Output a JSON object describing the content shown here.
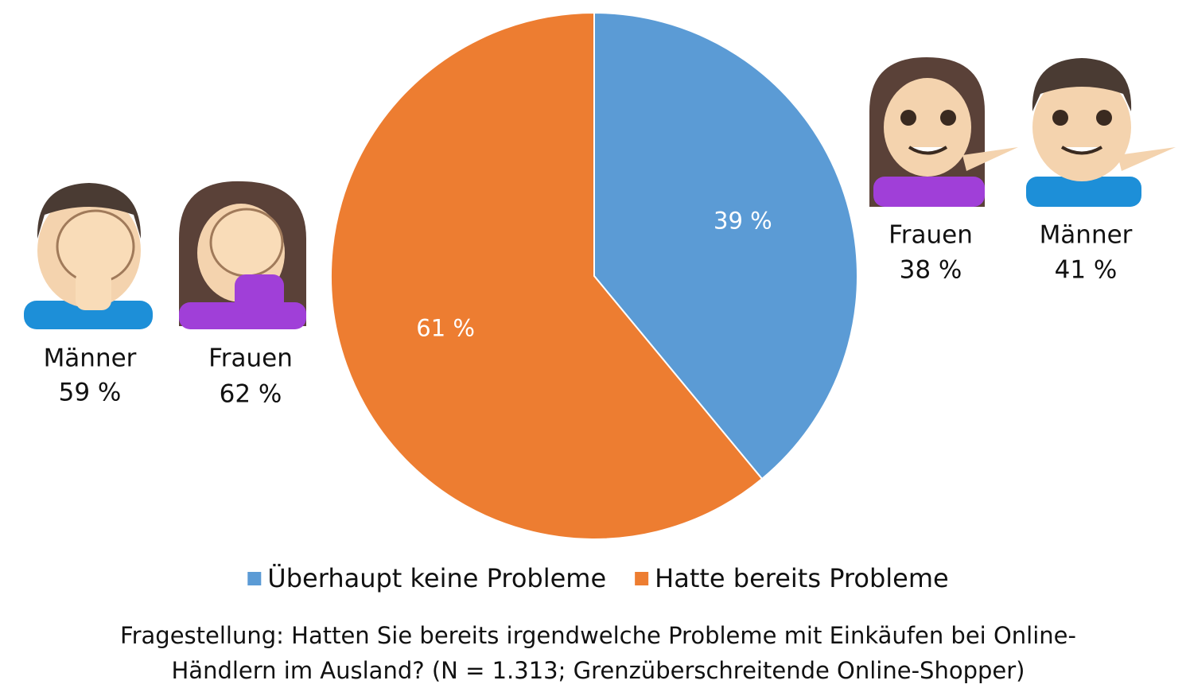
{
  "chart_data": {
    "type": "pie",
    "series": [
      {
        "name": "Überhaupt keine Probleme",
        "color": "#5b9bd5"
      },
      {
        "name": "Hatte bereits Probleme",
        "color": "#ed7d31"
      }
    ],
    "values": [
      39,
      61
    ],
    "value_labels": [
      "39 %",
      "61 %"
    ],
    "annotations": [
      {
        "group": "Männer",
        "share": "59 %"
      },
      {
        "group": "Frauen",
        "share": "62 %"
      },
      {
        "group": "Frauen",
        "share": "38 %"
      },
      {
        "group": "Männer",
        "share": "41 %"
      }
    ],
    "caption": [
      "Fragestellung: Hatten Sie bereits irgendwelche Probleme mit Einkäufen bei Online-",
      "Händlern im Ausland? (N = 1.313; Grenzüberschreitende Online-Shopper)"
    ]
  }
}
